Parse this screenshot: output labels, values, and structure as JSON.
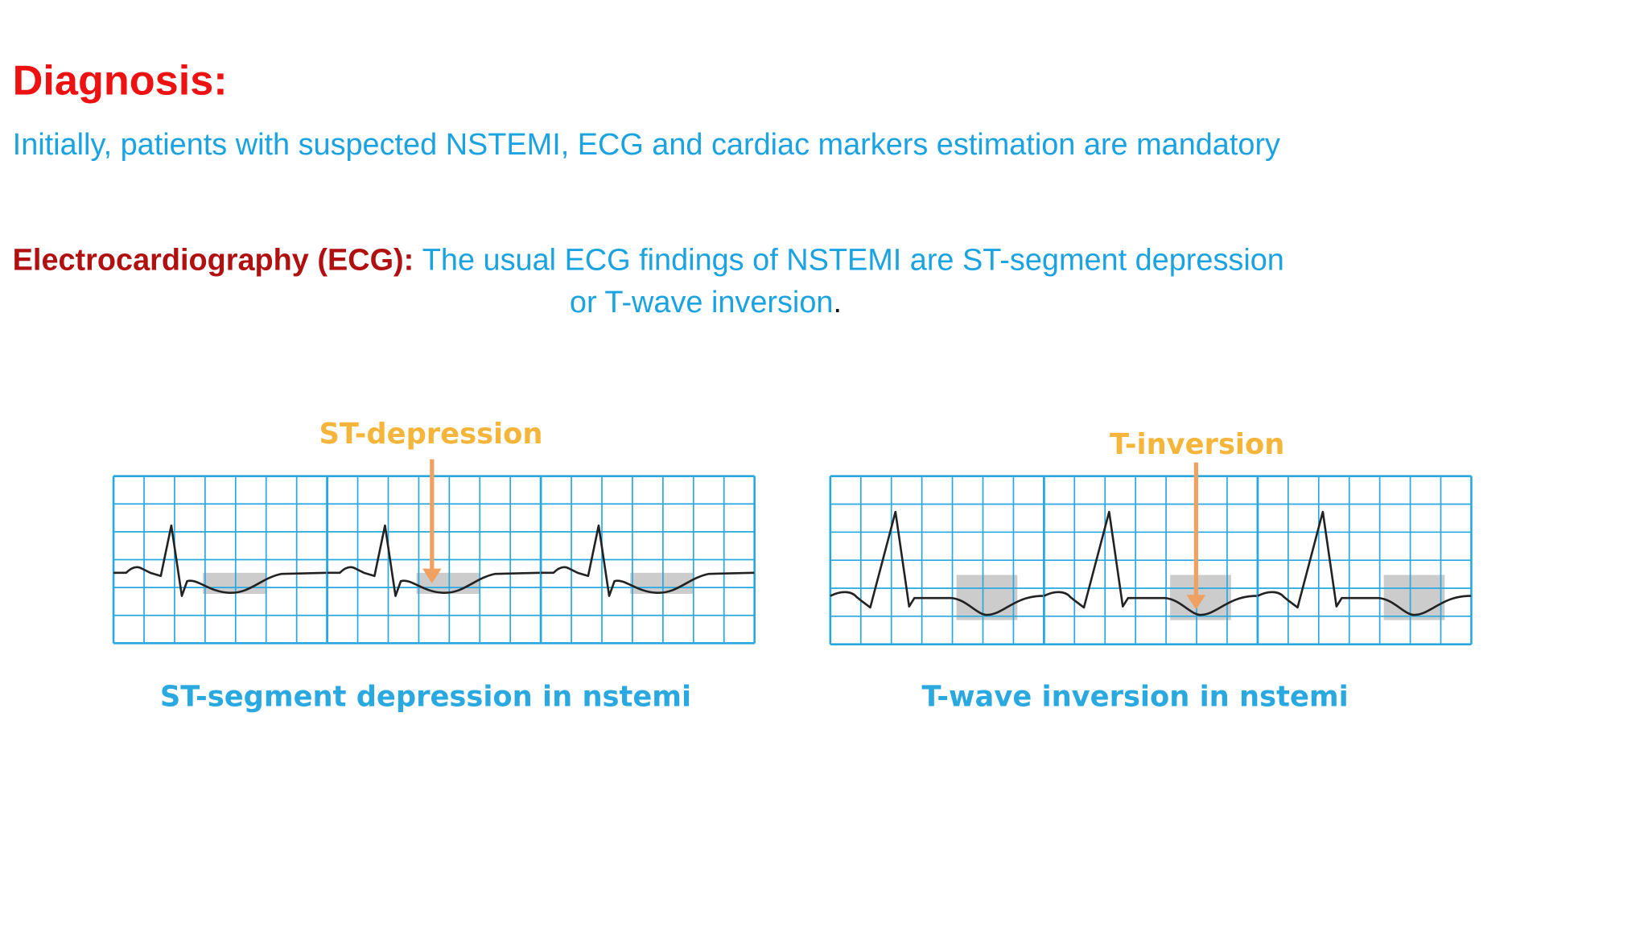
{
  "header": {
    "title": "Diagnosis:"
  },
  "intro": "Initially, patients with suspected NSTEMI, ECG and cardiac markers estimation are mandatory",
  "ecg": {
    "label": "Electrocardiography (ECG):",
    "text": [
      "The usual ECG findings of NSTEMI are ST-segment depression",
      "or T-wave inversion"
    ],
    "period": "."
  },
  "figures": [
    {
      "annotation": "ST-depression",
      "caption": "ST-segment depression in nstemi"
    },
    {
      "annotation": "T-inversion",
      "caption": "T-wave inversion in nstemi"
    }
  ]
}
